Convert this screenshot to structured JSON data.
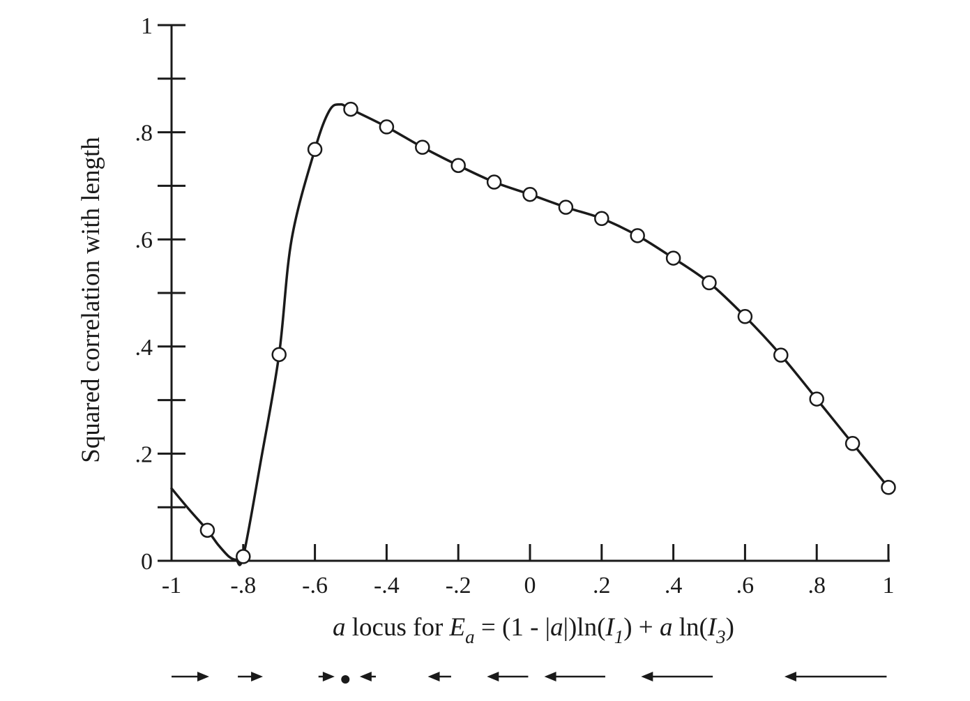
{
  "chart_data": {
    "type": "line",
    "xlabel": {
      "var": "a",
      "text": " locus for ",
      "E": "E",
      "E_sub": "a",
      "mid1": " = (1 - |",
      "abs_var": "a",
      "mid2": "|)ln(",
      "I1": "I",
      "I1_sub": "1",
      "mid3": ") + ",
      "var2": "a",
      "mid4": " ln(",
      "I3": "I",
      "I3_sub": "3",
      "end": ")"
    },
    "ylabel": "Squared correlation with length",
    "xlim": [
      -1,
      1
    ],
    "ylim": [
      0,
      1
    ],
    "x_ticks": [
      -1,
      -0.8,
      -0.6,
      -0.4,
      -0.2,
      0,
      0.2,
      0.4,
      0.6,
      0.8,
      1
    ],
    "x_tick_labels": [
      "-1",
      "-.8",
      "-.6",
      "-.4",
      "-.2",
      "0",
      ".2",
      ".4",
      ".6",
      ".8",
      "1"
    ],
    "y_ticks_major": [
      0,
      0.2,
      0.4,
      0.6,
      0.8,
      1
    ],
    "y_tick_labels": [
      "0",
      ".2",
      ".4",
      ".6",
      ".8",
      "1"
    ],
    "y_ticks_minor": [
      0.1,
      0.3,
      0.5,
      0.7,
      0.9
    ],
    "grid": false,
    "series": [
      {
        "points": [
          {
            "x": -0.9,
            "y": 0.057
          },
          {
            "x": -0.8,
            "y": 0.008
          },
          {
            "x": -0.7,
            "y": 0.385
          },
          {
            "x": -0.6,
            "y": 0.768
          },
          {
            "x": -0.5,
            "y": 0.843
          },
          {
            "x": -0.4,
            "y": 0.81
          },
          {
            "x": -0.3,
            "y": 0.772
          },
          {
            "x": -0.2,
            "y": 0.738
          },
          {
            "x": -0.1,
            "y": 0.707
          },
          {
            "x": 0.0,
            "y": 0.684
          },
          {
            "x": 0.1,
            "y": 0.66
          },
          {
            "x": 0.2,
            "y": 0.639
          },
          {
            "x": 0.3,
            "y": 0.607
          },
          {
            "x": 0.4,
            "y": 0.565
          },
          {
            "x": 0.5,
            "y": 0.519
          },
          {
            "x": 0.6,
            "y": 0.456
          },
          {
            "x": 0.7,
            "y": 0.384
          },
          {
            "x": 0.8,
            "y": 0.302
          },
          {
            "x": 0.9,
            "y": 0.219
          },
          {
            "x": 1.0,
            "y": 0.137
          }
        ],
        "curve": [
          [
            -1.0,
            0.135
          ],
          [
            -0.95,
            0.095
          ],
          [
            -0.9,
            0.057
          ],
          [
            -0.87,
            0.03
          ],
          [
            -0.84,
            0.008
          ],
          [
            -0.82,
            0.002
          ],
          [
            -0.8,
            0.008
          ],
          [
            -0.75,
            0.19
          ],
          [
            -0.7,
            0.385
          ],
          [
            -0.665,
            0.6
          ],
          [
            -0.6,
            0.768
          ],
          [
            -0.56,
            0.84
          ],
          [
            -0.53,
            0.852
          ],
          [
            -0.5,
            0.843
          ],
          [
            -0.4,
            0.81
          ],
          [
            -0.3,
            0.772
          ],
          [
            -0.2,
            0.738
          ],
          [
            -0.1,
            0.707
          ],
          [
            0.0,
            0.684
          ],
          [
            0.1,
            0.66
          ],
          [
            0.2,
            0.639
          ],
          [
            0.3,
            0.607
          ],
          [
            0.4,
            0.565
          ],
          [
            0.5,
            0.519
          ],
          [
            0.6,
            0.456
          ],
          [
            0.7,
            0.384
          ],
          [
            0.8,
            0.302
          ],
          [
            0.9,
            0.219
          ],
          [
            1.0,
            0.137
          ]
        ]
      }
    ],
    "bottom_indicators": [
      {
        "type": "arrow-right",
        "from": -1.0,
        "to": -0.895
      },
      {
        "type": "arrow-right",
        "from": -0.815,
        "to": -0.745
      },
      {
        "type": "arrow-right",
        "from": -0.59,
        "to": -0.545
      },
      {
        "type": "dot",
        "at": -0.515
      },
      {
        "type": "arrow-left",
        "from": -0.43,
        "to": -0.475
      },
      {
        "type": "arrow-left",
        "from": -0.22,
        "to": -0.285
      },
      {
        "type": "arrow-left",
        "from": -0.005,
        "to": -0.12
      },
      {
        "type": "arrow-left",
        "from": 0.21,
        "to": 0.04
      },
      {
        "type": "arrow-left",
        "from": 0.51,
        "to": 0.31
      },
      {
        "type": "arrow-left",
        "from": 0.995,
        "to": 0.71
      }
    ]
  }
}
